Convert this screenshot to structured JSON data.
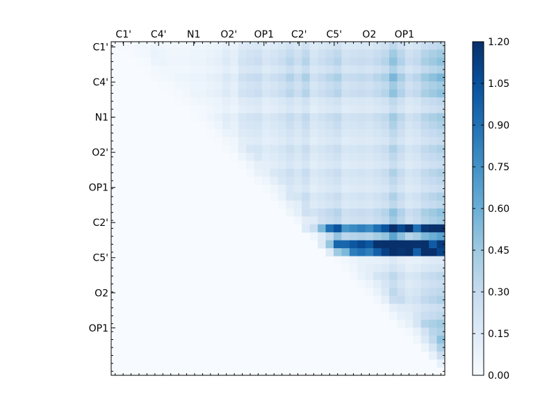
{
  "chart_data": {
    "type": "heatmap",
    "title": "",
    "xlabel": "",
    "ylabel": "",
    "grid_size": 42,
    "x_tick_labels": [
      "C1'",
      "C4'",
      "N1",
      "O2'",
      "OP1",
      "C2'",
      "C5'",
      "O2",
      "OP1"
    ],
    "y_tick_labels": [
      "C1'",
      "C4'",
      "N1",
      "O2'",
      "OP1",
      "C2'",
      "C5'",
      "O2",
      "OP1"
    ],
    "x_tick_position": "top",
    "colormap": "Blues",
    "colorbar": {
      "vmin": 0.0,
      "vmax": 1.2,
      "tick_labels": [
        "0.00",
        "0.15",
        "0.30",
        "0.45",
        "0.60",
        "0.75",
        "0.90",
        "1.05",
        "1.20"
      ]
    },
    "triangle": "upper",
    "column_base_values": [
      0.04,
      0.1,
      0.06,
      0.08,
      0.06,
      0.1,
      0.08,
      0.06,
      0.06,
      0.06,
      0.08,
      0.08,
      0.1,
      0.12,
      0.18,
      0.14,
      0.25,
      0.28,
      0.3,
      0.22,
      0.26,
      0.3,
      0.38,
      0.3,
      0.4,
      0.25,
      0.3,
      0.35,
      0.4,
      0.28,
      0.3,
      0.32,
      0.3,
      0.35,
      0.4,
      0.55,
      0.42,
      0.3,
      0.35,
      0.45,
      0.5,
      0.55
    ],
    "row_factor_values": [
      0.6,
      0.8,
      0.9,
      0.7,
      1.0,
      0.8,
      0.9,
      0.6,
      0.5,
      0.8,
      0.7,
      0.6,
      0.5,
      0.7,
      0.6,
      0.5,
      0.7,
      0.6,
      0.5,
      0.7,
      0.6,
      0.9,
      0.8,
      2.6,
      1.2,
      3.4,
      2.8,
      0.3,
      0.4,
      0.6,
      0.5,
      0.6,
      0.7,
      0.5,
      0.6,
      0.8,
      0.7,
      0.9,
      1.0,
      1.2,
      1.1,
      1.0
    ],
    "highlighted_values": [
      {
        "row": 23,
        "col": 37,
        "value": 1.2
      },
      {
        "row": 25,
        "col": 37,
        "value": 1.2
      },
      {
        "row": 26,
        "col": 37,
        "value": 1.2
      },
      {
        "row": 25,
        "col": 41,
        "value": 1.15
      },
      {
        "row": 26,
        "col": 41,
        "value": 1.1
      },
      {
        "row": 25,
        "col": 40,
        "value": 1.0
      }
    ]
  }
}
